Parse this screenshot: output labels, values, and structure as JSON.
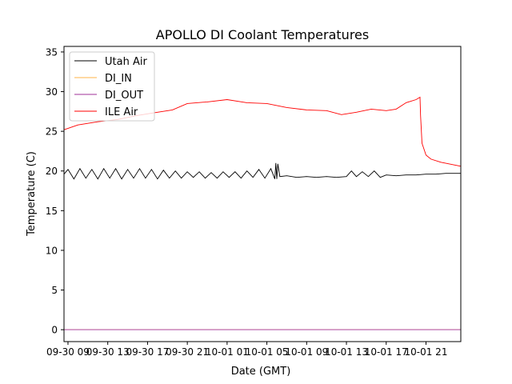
{
  "chart_data": {
    "type": "line",
    "title": "APOLLO DI Coolant Temperatures",
    "xlabel": "Date (GMT)",
    "ylabel": "Temperature (C)",
    "x_units": "hours since 09-30 00:00 GMT",
    "xlim": [
      8.6,
      48.5
    ],
    "ylim": [
      -1.5,
      35.7
    ],
    "x_ticks": [
      {
        "value": 9,
        "label": "09-30 09"
      },
      {
        "value": 13,
        "label": "09-30 13"
      },
      {
        "value": 17,
        "label": "09-30 17"
      },
      {
        "value": 21,
        "label": "09-30 21"
      },
      {
        "value": 25,
        "label": "10-01 01"
      },
      {
        "value": 29,
        "label": "10-01 05"
      },
      {
        "value": 33,
        "label": "10-01 09"
      },
      {
        "value": 37,
        "label": "10-01 13"
      },
      {
        "value": 41,
        "label": "10-01 17"
      },
      {
        "value": 45,
        "label": "10-01 21"
      }
    ],
    "y_ticks": [
      {
        "value": 0,
        "label": "0"
      },
      {
        "value": 5,
        "label": "5"
      },
      {
        "value": 10,
        "label": "10"
      },
      {
        "value": 15,
        "label": "15"
      },
      {
        "value": 20,
        "label": "20"
      },
      {
        "value": 25,
        "label": "25"
      },
      {
        "value": 30,
        "label": "30"
      },
      {
        "value": 35,
        "label": "35"
      }
    ],
    "grid": false,
    "legend_position": "top-left",
    "series": [
      {
        "name": "Utah Air",
        "color": "#000000",
        "x": [
          8.6,
          9.0,
          9.6,
          10.2,
          10.8,
          11.4,
          12.0,
          12.6,
          13.2,
          13.8,
          14.4,
          15.0,
          15.6,
          16.2,
          16.8,
          17.4,
          18.0,
          18.6,
          19.2,
          19.8,
          20.4,
          21.0,
          21.6,
          22.2,
          22.8,
          23.4,
          24.0,
          24.6,
          25.2,
          25.8,
          26.4,
          27.0,
          27.6,
          28.2,
          28.8,
          29.4,
          29.8,
          29.9,
          30.0,
          30.1,
          30.3,
          31,
          32,
          33,
          34,
          35,
          36,
          37,
          37.5,
          38,
          38.6,
          39.2,
          39.8,
          40.4,
          41,
          42,
          43,
          44,
          45,
          46,
          47,
          48.5
        ],
        "y": [
          19.6,
          20.2,
          19.0,
          20.3,
          19.1,
          20.2,
          19.0,
          20.3,
          19.1,
          20.3,
          19.0,
          20.2,
          19.1,
          20.3,
          19.1,
          20.2,
          19.0,
          20.1,
          19.1,
          20.0,
          19.1,
          19.9,
          19.2,
          19.9,
          19.1,
          19.8,
          19.1,
          19.9,
          19.2,
          19.9,
          19.1,
          20.0,
          19.2,
          20.2,
          19.1,
          20.3,
          19.0,
          21.0,
          19.0,
          20.9,
          19.3,
          19.4,
          19.2,
          19.3,
          19.2,
          19.3,
          19.2,
          19.3,
          20.0,
          19.3,
          19.9,
          19.3,
          20.0,
          19.2,
          19.5,
          19.4,
          19.5,
          19.5,
          19.6,
          19.6,
          19.7,
          19.7
        ]
      },
      {
        "name": "DI_IN",
        "color": "#ffb347",
        "x": [
          8.6,
          48.5
        ],
        "y": [
          0,
          0
        ]
      },
      {
        "name": "DI_OUT",
        "color": "#a0309a",
        "x": [
          8.6,
          48.5
        ],
        "y": [
          0,
          0
        ]
      },
      {
        "name": "ILE Air",
        "color": "#ff0000",
        "x": [
          8.6,
          10,
          12,
          14,
          16,
          18,
          19.5,
          21,
          23,
          25,
          27,
          29,
          31,
          33,
          35,
          36.5,
          38,
          39.5,
          41,
          42,
          43,
          44,
          44.4,
          44.45,
          44.6,
          45,
          45.5,
          46.5,
          48.5
        ],
        "y": [
          25.2,
          25.8,
          26.2,
          26.5,
          27.0,
          27.4,
          27.7,
          28.5,
          28.7,
          29.0,
          28.6,
          28.5,
          28.0,
          27.7,
          27.6,
          27.1,
          27.4,
          27.8,
          27.6,
          27.8,
          28.6,
          29.0,
          29.3,
          27.0,
          23.5,
          22.0,
          21.5,
          21.1,
          20.6
        ]
      }
    ]
  }
}
